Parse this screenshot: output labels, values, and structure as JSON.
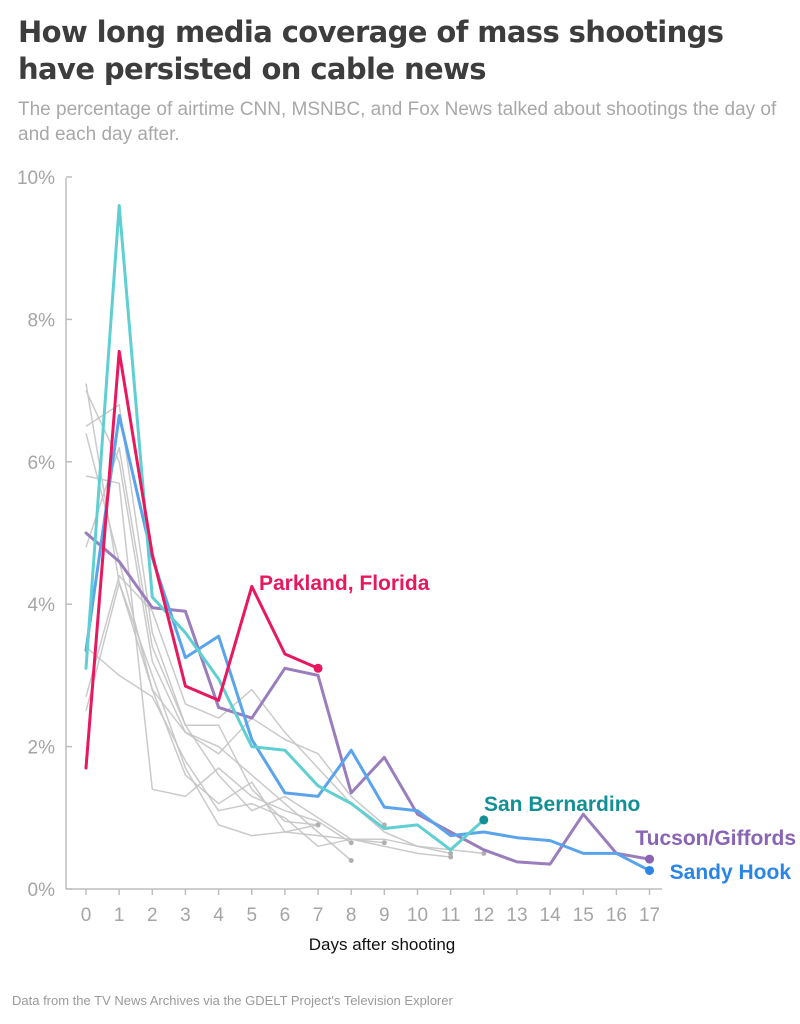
{
  "header": {
    "title": "How long media coverage of mass shootings have persisted on cable news",
    "subtitle": "The percentage of airtime CNN, MSNBC, and Fox News talked about shootings the day of and each day after."
  },
  "footer": {
    "source": "Data from the TV News Archives via the GDELT Project's Television Explorer"
  },
  "chart_data": {
    "type": "line",
    "xlabel": "Days after shooting",
    "ylabel": "",
    "xlim": [
      0,
      17
    ],
    "ylim": [
      0,
      10
    ],
    "x_ticks": [
      0,
      1,
      2,
      3,
      4,
      5,
      6,
      7,
      8,
      9,
      10,
      11,
      12,
      13,
      14,
      15,
      16,
      17
    ],
    "y_ticks": [
      {
        "value": 0,
        "label": "0%"
      },
      {
        "value": 2,
        "label": "2%"
      },
      {
        "value": 4,
        "label": "4%"
      },
      {
        "value": 6,
        "label": "6%"
      },
      {
        "value": 8,
        "label": "8%"
      },
      {
        "value": 10,
        "label": "10%"
      }
    ],
    "grid": false,
    "legend": "direct labels at line ends",
    "background_series": [
      {
        "color": "#c4c4c4",
        "values": [
          [
            0,
            7.1
          ],
          [
            1,
            4.3
          ],
          [
            2,
            3.0
          ],
          [
            3,
            1.7
          ],
          [
            4,
            0.9
          ],
          [
            5,
            0.75
          ],
          [
            6,
            0.8
          ],
          [
            7,
            0.9
          ]
        ]
      },
      {
        "color": "#c4c4c4",
        "values": [
          [
            0,
            6.5
          ],
          [
            1,
            6.8
          ],
          [
            2,
            3.6
          ],
          [
            3,
            2.3
          ],
          [
            4,
            2.3
          ],
          [
            5,
            1.4
          ],
          [
            6,
            0.95
          ],
          [
            7,
            0.9
          ]
        ]
      },
      {
        "color": "#c4c4c4",
        "values": [
          [
            0,
            5.8
          ],
          [
            1,
            5.7
          ],
          [
            2,
            1.4
          ],
          [
            3,
            1.3
          ],
          [
            4,
            1.7
          ],
          [
            5,
            1.3
          ],
          [
            6,
            1.1
          ],
          [
            7,
            0.95
          ],
          [
            8,
            0.65
          ]
        ]
      },
      {
        "color": "#c4c4c4",
        "values": [
          [
            0,
            2.5
          ],
          [
            1,
            4.3
          ],
          [
            2,
            2.8
          ],
          [
            3,
            1.6
          ],
          [
            4,
            1.2
          ],
          [
            5,
            1.5
          ],
          [
            6,
            0.8
          ],
          [
            7,
            0.75
          ],
          [
            8,
            0.7
          ],
          [
            9,
            0.65
          ]
        ]
      },
      {
        "color": "#c4c4c4",
        "values": [
          [
            0,
            3.4
          ],
          [
            1,
            3.0
          ],
          [
            2,
            2.7
          ],
          [
            3,
            1.8
          ],
          [
            4,
            1.1
          ],
          [
            5,
            1.2
          ],
          [
            6,
            1.0
          ],
          [
            7,
            0.6
          ],
          [
            8,
            0.7
          ],
          [
            9,
            0.7
          ],
          [
            10,
            0.6
          ],
          [
            11,
            0.5
          ]
        ]
      },
      {
        "color": "#c4c4c4",
        "values": [
          [
            0,
            2.7
          ],
          [
            1,
            4.4
          ],
          [
            2,
            3.9
          ],
          [
            3,
            2.6
          ],
          [
            4,
            2.4
          ],
          [
            5,
            2.8
          ],
          [
            6,
            2.2
          ],
          [
            7,
            1.7
          ],
          [
            8,
            1.2
          ],
          [
            9,
            0.8
          ],
          [
            10,
            0.6
          ],
          [
            11,
            0.55
          ],
          [
            12,
            0.5
          ]
        ]
      },
      {
        "color": "#c4c4c4",
        "values": [
          [
            0,
            7.0
          ],
          [
            1,
            6.0
          ],
          [
            2,
            3.2
          ],
          [
            3,
            2.2
          ],
          [
            4,
            2.0
          ],
          [
            5,
            1.6
          ],
          [
            6,
            1.2
          ],
          [
            7,
            0.8
          ],
          [
            8,
            0.4
          ]
        ]
      },
      {
        "color": "#c4c4c4",
        "values": [
          [
            0,
            4.8
          ],
          [
            1,
            6.2
          ],
          [
            2,
            3.4
          ],
          [
            3,
            2.3
          ],
          [
            4,
            1.6
          ],
          [
            5,
            1.1
          ],
          [
            6,
            1.3
          ],
          [
            7,
            1.0
          ],
          [
            8,
            0.7
          ],
          [
            9,
            0.6
          ],
          [
            10,
            0.5
          ],
          [
            11,
            0.45
          ]
        ]
      },
      {
        "color": "#c4c4c4",
        "values": [
          [
            0,
            6.4
          ],
          [
            1,
            4.6
          ],
          [
            2,
            2.8
          ],
          [
            3,
            2.2
          ],
          [
            4,
            1.9
          ],
          [
            5,
            2.4
          ],
          [
            6,
            2.1
          ],
          [
            7,
            1.9
          ],
          [
            8,
            1.3
          ],
          [
            9,
            0.9
          ]
        ]
      }
    ],
    "series": [
      {
        "name": "Tucson/Giffords",
        "color": "#9a7dbd",
        "values": [
          [
            0,
            5.0
          ],
          [
            1,
            4.6
          ],
          [
            2,
            3.95
          ],
          [
            3,
            3.9
          ],
          [
            4,
            2.55
          ],
          [
            5,
            2.4
          ],
          [
            6,
            3.1
          ],
          [
            7,
            3.0
          ],
          [
            8,
            1.35
          ],
          [
            9,
            1.85
          ],
          [
            10,
            1.05
          ],
          [
            11,
            0.8
          ],
          [
            12,
            0.55
          ],
          [
            13,
            0.38
          ],
          [
            14,
            0.35
          ],
          [
            15,
            1.05
          ],
          [
            16,
            0.5
          ],
          [
            17,
            0.42
          ]
        ]
      },
      {
        "name": "Sandy Hook",
        "color": "#5aa4ec",
        "values": [
          [
            0,
            3.35
          ],
          [
            1,
            6.65
          ],
          [
            2,
            4.65
          ],
          [
            3,
            3.25
          ],
          [
            4,
            3.55
          ],
          [
            5,
            2.1
          ],
          [
            6,
            1.35
          ],
          [
            7,
            1.3
          ],
          [
            8,
            1.95
          ],
          [
            9,
            1.15
          ],
          [
            10,
            1.1
          ],
          [
            11,
            0.75
          ],
          [
            12,
            0.8
          ],
          [
            13,
            0.72
          ],
          [
            14,
            0.68
          ],
          [
            15,
            0.5
          ],
          [
            16,
            0.5
          ],
          [
            17,
            0.26
          ]
        ]
      },
      {
        "name": "San Bernardino",
        "color": "#5fcfd2",
        "values": [
          [
            0,
            3.1
          ],
          [
            1,
            9.6
          ],
          [
            2,
            4.1
          ],
          [
            3,
            3.6
          ],
          [
            4,
            2.95
          ],
          [
            5,
            2.0
          ],
          [
            6,
            1.95
          ],
          [
            7,
            1.45
          ],
          [
            8,
            1.2
          ],
          [
            9,
            0.85
          ],
          [
            10,
            0.9
          ],
          [
            11,
            0.55
          ],
          [
            12,
            0.97
          ]
        ]
      },
      {
        "name": "Parkland, Florida",
        "color": "#e8185e",
        "values": [
          [
            0,
            1.7
          ],
          [
            1,
            7.55
          ],
          [
            2,
            4.7
          ],
          [
            3,
            2.85
          ],
          [
            4,
            2.65
          ],
          [
            5,
            4.25
          ],
          [
            6,
            3.3
          ],
          [
            7,
            3.1
          ]
        ]
      }
    ],
    "labels": [
      {
        "series": "Parkland, Florida",
        "text": "Parkland, Florida",
        "color": "#e8185e"
      },
      {
        "series": "San Bernardino",
        "text": "San Bernardino",
        "color": "#138f96"
      },
      {
        "series": "Tucson/Giffords",
        "text": "Tucson/Giffords",
        "color": "#8a63b3"
      },
      {
        "series": "Sandy Hook",
        "text": "Sandy Hook",
        "color": "#2b85e6"
      }
    ]
  }
}
